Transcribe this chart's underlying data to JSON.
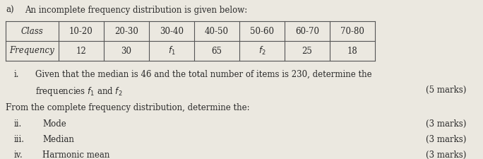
{
  "title_prefix": "a)",
  "title_text": "An incomplete frequency distribution is given below:",
  "table_headers": [
    "Class",
    "10-20",
    "20-30",
    "30-40",
    "40-50",
    "50-60",
    "60-70",
    "70-80"
  ],
  "table_row_label": "Frequency",
  "table_freq": [
    "12",
    "30",
    "$f_1$",
    "65",
    "$f_2$",
    "25",
    "18"
  ],
  "question_i_roman": "i.",
  "question_i_text1": "Given that the median is 46 and the total number of items is 230, determine the",
  "question_i_text2": "frequencies $f_1$ and $f_2$",
  "question_i_marks": "(5 marks)",
  "from_text": "From the complete frequency distribution, determine the:",
  "question_ii_roman": "ii.",
  "question_ii_text": "Mode",
  "question_ii_marks": "(3 marks)",
  "question_iii_roman": "iii.",
  "question_iii_text": "Median",
  "question_iii_marks": "(3 marks)",
  "question_iv_roman": "iv.",
  "question_iv_text": "Harmonic mean",
  "question_iv_marks": "(3 marks)",
  "bg_color": "#ebe8e0",
  "text_color": "#2a2a2a",
  "table_line_color": "#555555",
  "font_size": 8.5
}
